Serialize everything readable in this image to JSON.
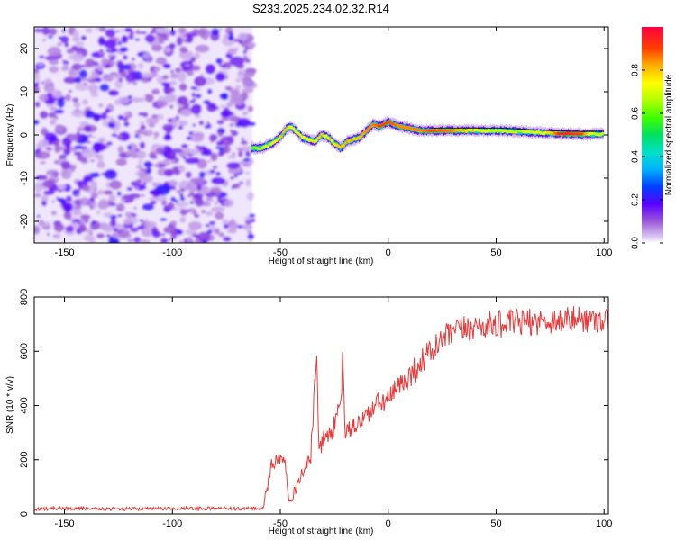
{
  "title": "S233.2025.234.02.32.R14",
  "colors": {
    "snr_line": "#e83a3a",
    "axes": "#000000",
    "background": "#ffffff",
    "noise_purple": "#8a2be2"
  },
  "chart_data": [
    {
      "type": "heatmap",
      "xlabel": "Height of straight line (km)",
      "ylabel": "Frequency (Hz)",
      "xlim": [
        -164,
        102
      ],
      "ylim": [
        -25,
        25
      ],
      "x_ticks": [
        -150,
        -100,
        -50,
        0,
        50,
        100
      ],
      "x_tick_labels": [
        "-150",
        "-100",
        "-50",
        "0",
        "50",
        "100"
      ],
      "y_ticks": [
        20,
        10,
        0,
        -10,
        -20
      ],
      "y_tick_labels": [
        "20",
        "10",
        "0",
        "-10",
        "-20"
      ],
      "noise_region_x": [
        -164,
        -63
      ],
      "ridge_trace": {
        "x": [
          -63,
          -58,
          -54,
          -50,
          -47,
          -45,
          -42,
          -40,
          -37,
          -34,
          -31,
          -28,
          -25,
          -22,
          -19,
          -16,
          -13,
          -10,
          -7,
          -4,
          0,
          5,
          10,
          15,
          20,
          30,
          40,
          50,
          60,
          70,
          80,
          90,
          95,
          100
        ],
        "freq": [
          -3,
          -3,
          -2,
          -0.5,
          1.5,
          2,
          0.5,
          -0.5,
          -1,
          -1.5,
          0,
          -0.5,
          -2,
          -3,
          -1.5,
          -1,
          -0.5,
          1,
          2.5,
          2,
          3,
          2,
          1.5,
          1,
          1,
          1,
          1,
          1,
          0.8,
          0.5,
          0.3,
          0.2,
          0.2,
          0.2
        ],
        "amplitude": [
          0.35,
          0.5,
          0.6,
          0.75,
          0.7,
          0.6,
          0.6,
          0.65,
          0.7,
          0.7,
          0.75,
          0.7,
          0.75,
          0.8,
          0.8,
          0.75,
          0.8,
          0.85,
          0.85,
          0.9,
          0.9,
          0.85,
          0.85,
          0.85,
          0.9,
          0.85,
          0.7,
          0.55,
          0.5,
          0.6,
          0.95,
          0.9,
          0.55,
          0.5
        ]
      },
      "colorbar": {
        "label": "Normalized spectral amplitude",
        "range": [
          0,
          1
        ],
        "ticks": [
          0.0,
          0.2,
          0.4,
          0.6,
          0.8
        ],
        "tick_labels": [
          "0.0",
          "0.2",
          "0.4",
          "0.6",
          "0.8"
        ]
      }
    },
    {
      "type": "line",
      "xlabel": "Height of straight line (km)",
      "ylabel": "SNR (10 * v/v)",
      "xlim": [
        -164,
        102
      ],
      "ylim": [
        0,
        800
      ],
      "x_ticks": [
        -150,
        -100,
        -50,
        0,
        50,
        100
      ],
      "x_tick_labels": [
        "-150",
        "-100",
        "-50",
        "0",
        "50",
        "100"
      ],
      "y_ticks": [
        0,
        200,
        400,
        600,
        800
      ],
      "y_tick_labels": [
        "0",
        "200",
        "400",
        "600",
        "800"
      ],
      "series": [
        {
          "name": "SNR",
          "x": [
            -164,
            -150,
            -120,
            -90,
            -70,
            -58,
            -56,
            -54,
            -52,
            -50,
            -48,
            -46,
            -44,
            -40,
            -36,
            -34,
            -33,
            -32,
            -30,
            -26,
            -22,
            -21,
            -20,
            -16,
            -12,
            -8,
            -4,
            0,
            5,
            10,
            15,
            20,
            25,
            30,
            40,
            50,
            60,
            70,
            80,
            90,
            95,
            100,
            102
          ],
          "y": [
            18,
            20,
            18,
            20,
            19,
            20,
            100,
            180,
            205,
            200,
            215,
            60,
            70,
            150,
            200,
            480,
            560,
            220,
            280,
            300,
            400,
            590,
            300,
            320,
            350,
            380,
            410,
            420,
            470,
            510,
            560,
            600,
            640,
            670,
            690,
            700,
            705,
            710,
            715,
            720,
            715,
            720,
            720
          ],
          "noise_amplitude_low": 10,
          "noise_amplitude_high": 45
        }
      ]
    }
  ]
}
